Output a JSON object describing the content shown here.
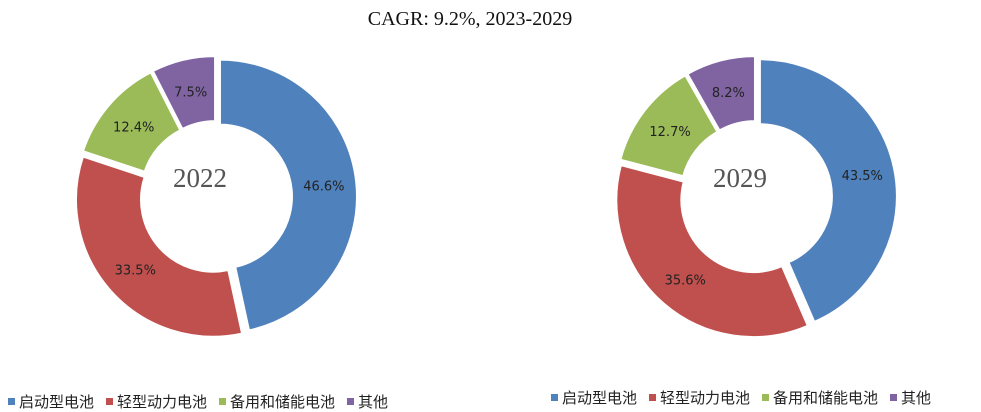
{
  "title": "CAGR: 9.2%, 2023-2029",
  "chart_data": [
    {
      "type": "pie",
      "donut": true,
      "center_label": "2022",
      "categories": [
        "启动型电池",
        "轻型动力电池",
        "备用和储能电池",
        "其他"
      ],
      "values": [
        46.6,
        33.5,
        12.4,
        7.5
      ],
      "labels": [
        "46.6%",
        "33.5%",
        "12.4%",
        "7.5%"
      ],
      "colors": [
        "#4F81BD",
        "#C0504D",
        "#9BBB59",
        "#8064A2"
      ],
      "legend_position": "bottom"
    },
    {
      "type": "pie",
      "donut": true,
      "center_label": "2029",
      "categories": [
        "启动型电池",
        "轻型动力电池",
        "备用和储能电池",
        "其他"
      ],
      "values": [
        43.5,
        35.6,
        12.7,
        8.2
      ],
      "labels": [
        "43.5%",
        "35.6%",
        "12.7%",
        "8.2%"
      ],
      "colors": [
        "#4F81BD",
        "#C0504D",
        "#9BBB59",
        "#8064A2"
      ],
      "legend_position": "bottom"
    }
  ]
}
